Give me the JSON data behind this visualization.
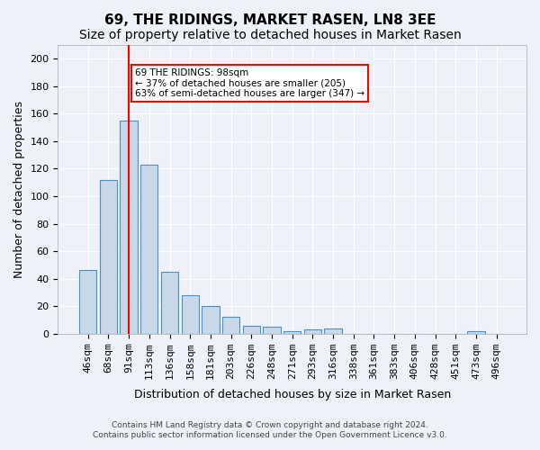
{
  "title": "69, THE RIDINGS, MARKET RASEN, LN8 3EE",
  "subtitle": "Size of property relative to detached houses in Market Rasen",
  "xlabel": "Distribution of detached houses by size in Market Rasen",
  "ylabel": "Number of detached properties",
  "footer_line1": "Contains HM Land Registry data © Crown copyright and database right 2024.",
  "footer_line2": "Contains public sector information licensed under the Open Government Licence v3.0.",
  "bar_labels": [
    "46sqm",
    "68sqm",
    "91sqm",
    "113sqm",
    "136sqm",
    "158sqm",
    "181sqm",
    "203sqm",
    "226sqm",
    "248sqm",
    "271sqm",
    "293sqm",
    "316sqm",
    "338sqm",
    "361sqm",
    "383sqm",
    "406sqm",
    "428sqm",
    "451sqm",
    "473sqm",
    "496sqm"
  ],
  "bar_values": [
    46,
    112,
    155,
    123,
    45,
    28,
    20,
    12,
    6,
    5,
    2,
    3,
    4,
    0,
    0,
    0,
    0,
    0,
    0,
    2,
    0
  ],
  "bar_color": "#c8d8e8",
  "bar_edge_color": "#4a90c4",
  "property_line_x": 2.0,
  "property_line_color": "red",
  "annotation_text": "69 THE RIDINGS: 98sqm\n← 37% of detached houses are smaller (205)\n63% of semi-detached houses are larger (347) →",
  "annotation_box_color": "white",
  "annotation_box_edge": "red",
  "ylim": [
    0,
    210
  ],
  "yticks": [
    0,
    20,
    40,
    60,
    80,
    100,
    120,
    140,
    160,
    180,
    200
  ],
  "background_color": "#eef2f8",
  "plot_background_color": "#eef2f8",
  "grid_color": "white",
  "title_fontsize": 11,
  "subtitle_fontsize": 10,
  "axis_label_fontsize": 9,
  "tick_fontsize": 8
}
